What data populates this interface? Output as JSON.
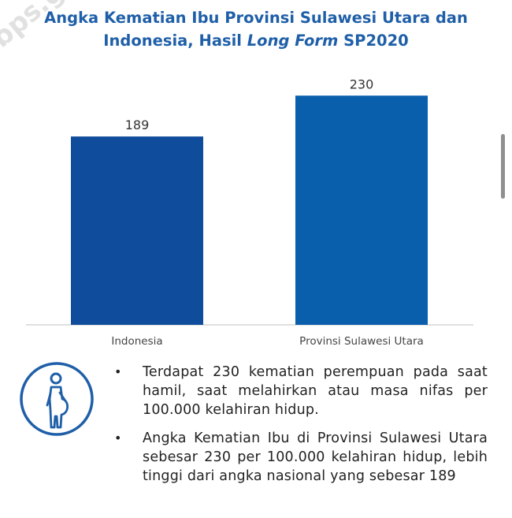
{
  "title": {
    "line1": "Angka Kematian Ibu Provinsi Sulawesi Utara dan",
    "line2_prefix": "Indonesia, Hasil ",
    "line2_italic": "Long Form",
    "line2_suffix": " SP2020"
  },
  "watermark": "bps.go.id",
  "colors": {
    "title": "#1f5fa8",
    "bar_indonesia": "#0f4c9c",
    "bar_sulut": "#0a5fad",
    "axis": "#cccccc",
    "icon": "#1f5fa8"
  },
  "chart_data": {
    "type": "bar",
    "categories": [
      "Indonesia",
      "Provinsi Sulawesi Utara"
    ],
    "values": [
      189,
      230
    ],
    "data_labels": [
      "189",
      "230"
    ],
    "ylim": [
      0,
      250
    ],
    "grid": false,
    "legend": "none"
  },
  "icon": "pregnant-woman-icon",
  "notes": [
    "Terdapat 230 kematian perempuan pada saat hamil, saat melahirkan atau masa nifas per 100.000 kelahiran hidup.",
    "Angka Kematian Ibu di Provinsi Sulawesi Utara sebesar 230 per 100.000 kelahiran hidup, lebih tinggi dari angka nasional yang sebesar 189"
  ],
  "bullet_char": "•"
}
